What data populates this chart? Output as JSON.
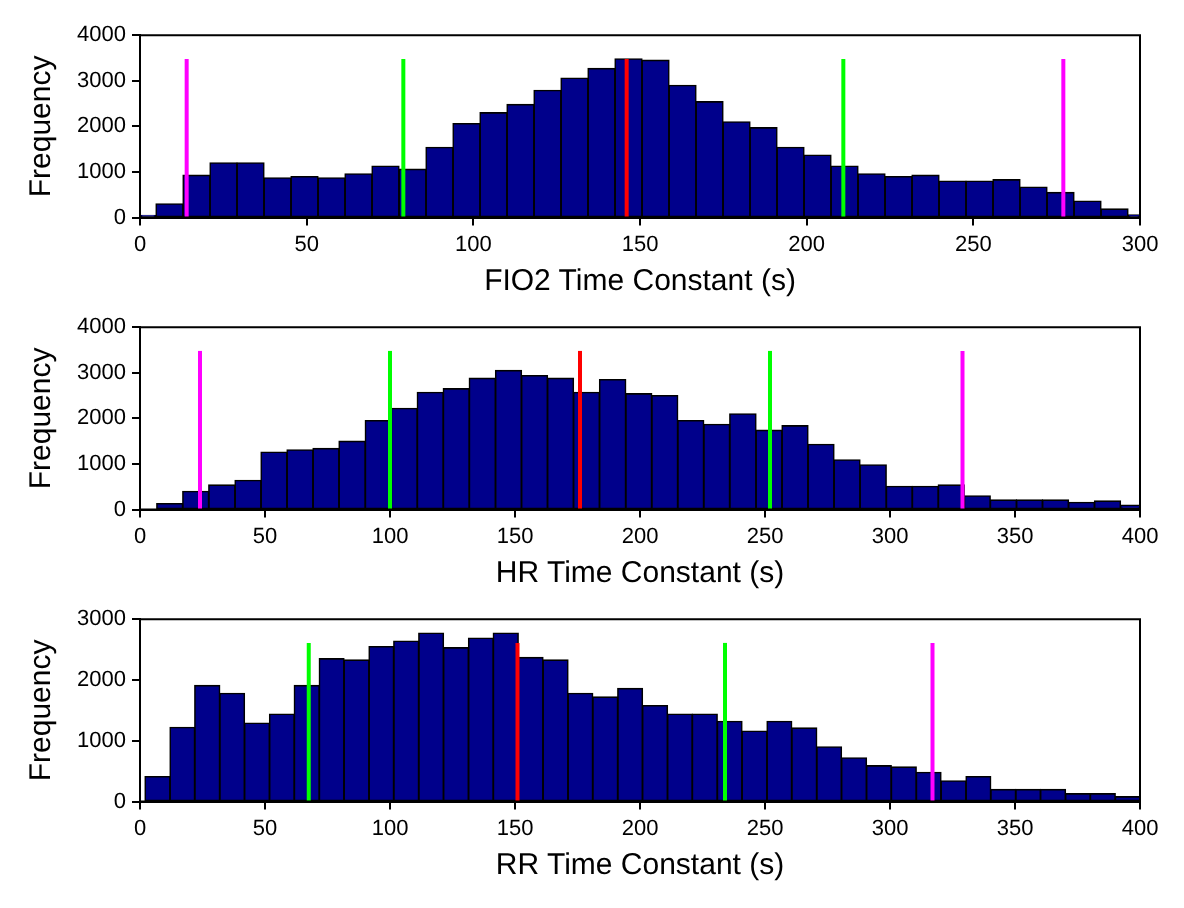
{
  "chart_data": [
    {
      "type": "histogram",
      "xlabel": "FIO2 Time Constant (s)",
      "ylabel": "Frequency",
      "color": "#00008b",
      "xlim": [
        0,
        300
      ],
      "ylim": [
        0,
        4000
      ],
      "xticks": [
        0,
        50,
        100,
        150,
        200,
        250,
        300
      ],
      "yticks": [
        0,
        1000,
        2000,
        3000,
        4000
      ],
      "bins": [
        0,
        4.8,
        12.9,
        21.0,
        29.1,
        37.2,
        45.3,
        53.4,
        61.5,
        69.6,
        77.7,
        85.8,
        93.9,
        102.0,
        110.1,
        118.2,
        126.3,
        134.4,
        142.5,
        150.6,
        158.7,
        166.8,
        174.9,
        183.0,
        191.1,
        199.2,
        207.3,
        215.4,
        223.5,
        231.6,
        239.7,
        247.8,
        255.9,
        264.0,
        272.1,
        280.2,
        288.3,
        296.4,
        300
      ],
      "values": [
        50,
        300,
        930,
        1200,
        1200,
        870,
        900,
        870,
        960,
        1130,
        1060,
        1540,
        2060,
        2300,
        2480,
        2790,
        3060,
        3270,
        3480,
        3450,
        2900,
        2540,
        2100,
        1970,
        1540,
        1370,
        1130,
        960,
        900,
        930,
        800,
        800,
        830,
        670,
        550,
        360,
        190,
        60
      ],
      "ref_lines": [
        {
          "axis": "x",
          "value": 14,
          "color": "#ff00ff"
        },
        {
          "axis": "x",
          "value": 79,
          "color": "#00ff00"
        },
        {
          "axis": "x",
          "value": 146,
          "color": "#ff0000"
        },
        {
          "axis": "x",
          "value": 211,
          "color": "#00ff00"
        },
        {
          "axis": "x",
          "value": 277,
          "color": "#ff00ff"
        }
      ]
    },
    {
      "type": "histogram",
      "xlabel": "HR Time Constant (s)",
      "ylabel": "Frequency",
      "color": "#00008b",
      "xlim": [
        0,
        400
      ],
      "ylim": [
        0,
        4000
      ],
      "xticks": [
        0,
        50,
        100,
        150,
        200,
        250,
        300,
        350,
        400
      ],
      "yticks": [
        0,
        1000,
        2000,
        3000,
        4000
      ],
      "bins": [
        6.7,
        17.1,
        27.5,
        38.0,
        48.4,
        58.8,
        69.2,
        79.6,
        90.1,
        100.5,
        110.9,
        121.3,
        131.7,
        142.2,
        152.6,
        163.0,
        173.4,
        183.8,
        194.3,
        204.7,
        215.1,
        225.5,
        235.9,
        246.4,
        256.8,
        267.2,
        277.6,
        288.0,
        298.5,
        308.9,
        319.3,
        329.7,
        340.1,
        350.6,
        361.0,
        371.4,
        381.8,
        392.2,
        400
      ],
      "values": [
        130,
        400,
        540,
        640,
        1260,
        1310,
        1340,
        1500,
        1950,
        2220,
        2570,
        2650,
        2880,
        3050,
        2940,
        2880,
        2570,
        2850,
        2540,
        2500,
        1950,
        1870,
        2100,
        1740,
        1840,
        1430,
        1090,
        980,
        510,
        510,
        540,
        300,
        210,
        210,
        210,
        160,
        190,
        100
      ],
      "ref_lines": [
        {
          "axis": "x",
          "value": 24,
          "color": "#ff00ff"
        },
        {
          "axis": "x",
          "value": 100,
          "color": "#00ff00"
        },
        {
          "axis": "x",
          "value": 176,
          "color": "#ff0000"
        },
        {
          "axis": "x",
          "value": 252,
          "color": "#00ff00"
        },
        {
          "axis": "x",
          "value": 329,
          "color": "#ff00ff"
        }
      ]
    },
    {
      "type": "histogram",
      "xlabel": "RR Time Constant (s)",
      "ylabel": "Frequency",
      "color": "#00008b",
      "xlim": [
        0,
        400
      ],
      "ylim": [
        0,
        3000
      ],
      "xticks": [
        0,
        50,
        100,
        150,
        200,
        250,
        300,
        350,
        400
      ],
      "yticks": [
        0,
        1000,
        2000,
        3000
      ],
      "bins": [
        2.0,
        12.0,
        21.9,
        31.9,
        41.8,
        51.8,
        61.7,
        71.7,
        81.6,
        91.6,
        101.5,
        111.5,
        121.4,
        131.4,
        141.3,
        151.3,
        161.2,
        171.2,
        181.1,
        191.1,
        201.0,
        211.0,
        220.9,
        230.9,
        240.8,
        250.8,
        260.7,
        270.7,
        280.6,
        290.6,
        300.5,
        310.5,
        320.4,
        330.4,
        340.3,
        350.3,
        360.2,
        370.2,
        380.1,
        390.1,
        400
      ],
      "values": [
        410,
        1220,
        1910,
        1780,
        1290,
        1440,
        1910,
        2350,
        2330,
        2550,
        2640,
        2770,
        2530,
        2690,
        2770,
        2370,
        2330,
        1780,
        1720,
        1860,
        1580,
        1440,
        1440,
        1320,
        1160,
        1320,
        1210,
        900,
        720,
        590,
        570,
        480,
        340,
        410,
        200,
        200,
        200,
        130,
        130,
        80
      ],
      "ref_lines": [
        {
          "axis": "x",
          "value": 67.5,
          "color": "#00ff00"
        },
        {
          "axis": "x",
          "value": 151,
          "color": "#ff0000"
        },
        {
          "axis": "x",
          "value": 234,
          "color": "#00ff00"
        },
        {
          "axis": "x",
          "value": 317,
          "color": "#ff00ff"
        }
      ]
    }
  ]
}
